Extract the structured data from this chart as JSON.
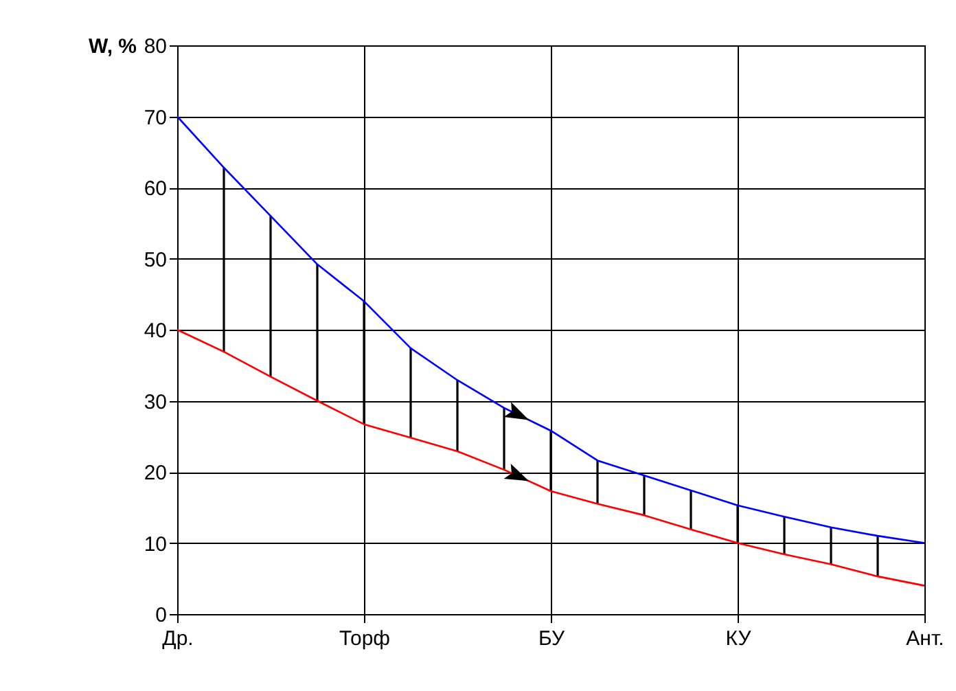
{
  "chart_data": {
    "type": "line",
    "ylabel": "W, %",
    "categories": [
      "Др.",
      null,
      null,
      null,
      "Торф",
      null,
      null,
      null,
      "БУ",
      null,
      null,
      null,
      "КУ",
      null,
      null,
      null,
      "Ант."
    ],
    "ylim": [
      0,
      80
    ],
    "yticks": [
      0,
      10,
      20,
      30,
      40,
      50,
      60,
      70,
      80
    ],
    "grid": true,
    "legend": false,
    "marker": "none",
    "line_style": "solid",
    "series": [
      {
        "type": "bar",
        "color": "#000000",
        "base": [
          null,
          36.9,
          33.4,
          30,
          26.7,
          24.8,
          22.9,
          20.3,
          17.3,
          15.5,
          13.9,
          11.9,
          10,
          8.4,
          7,
          5.3,
          null
        ],
        "values": [
          null,
          25.9,
          22.6,
          19.2,
          17.3,
          12.6,
          10,
          8.7,
          8.5,
          6.1,
          5.6,
          5.5,
          5.3,
          5.3,
          5.2,
          5.7,
          null
        ]
      },
      {
        "color": "#0000ff",
        "values": [
          70,
          62.8,
          56,
          49.2,
          44,
          37.4,
          32.9,
          29,
          25.8,
          21.6,
          19.5,
          17.4,
          15.3,
          13.7,
          12.2,
          11,
          10
        ]
      },
      {
        "color": "#ff0000",
        "values": [
          40,
          36.9,
          33.4,
          30,
          26.7,
          24.8,
          22.9,
          20.3,
          17.3,
          15.5,
          13.9,
          11.9,
          10,
          8.4,
          7,
          5.3,
          4
        ]
      }
    ]
  }
}
